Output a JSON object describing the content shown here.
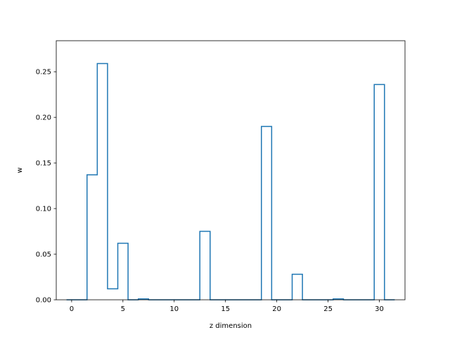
{
  "chart_data": {
    "type": "step",
    "title": "",
    "xlabel": "z dimension",
    "ylabel": "w",
    "xlim": [
      -1.5,
      32.5
    ],
    "ylim": [
      0.0,
      0.284
    ],
    "xticks": [
      0,
      5,
      10,
      15,
      20,
      25,
      30
    ],
    "xtick_labels": [
      "0",
      "5",
      "10",
      "15",
      "20",
      "25",
      "30"
    ],
    "yticks": [
      0.0,
      0.05,
      0.1,
      0.15,
      0.2,
      0.25
    ],
    "ytick_labels": [
      "0.00",
      "0.05",
      "0.10",
      "0.15",
      "0.20",
      "0.25"
    ],
    "grid": false,
    "line_color": "#1f77b4",
    "x": [
      0,
      1,
      2,
      3,
      4,
      5,
      6,
      7,
      8,
      9,
      10,
      11,
      12,
      13,
      14,
      15,
      16,
      17,
      18,
      19,
      20,
      21,
      22,
      23,
      24,
      25,
      26,
      27,
      28,
      29,
      30,
      31
    ],
    "values": [
      0.0,
      0.0,
      0.137,
      0.259,
      0.012,
      0.062,
      0.0,
      0.001,
      0.0,
      0.0,
      0.0,
      0.0,
      0.0,
      0.075,
      0.0,
      0.0,
      0.0,
      0.0,
      0.0,
      0.19,
      0.0,
      0.0,
      0.028,
      0.0,
      0.0,
      0.0,
      0.001,
      0.0,
      0.0,
      0.0,
      0.236,
      0.0
    ]
  }
}
